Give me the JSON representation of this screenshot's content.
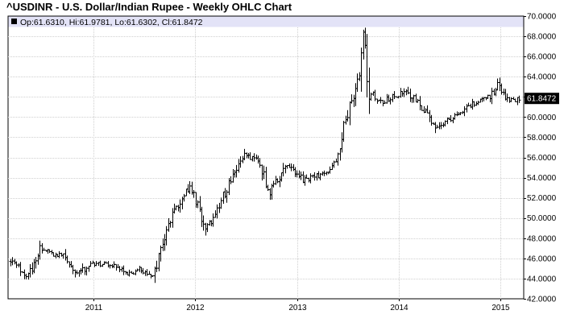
{
  "chart_data": {
    "type": "ohlc",
    "title": "^USDINR - U.S. Dollar/Indian Rupee - Weekly OHLC Chart",
    "info_bar": "Op:61.6310, Hi:61.9781, Lo:61.6302, Cl:61.8472",
    "last_value_label": "61.8472",
    "last_value": 61.8472,
    "ylim": [
      42,
      70
    ],
    "y_ticks": [
      42,
      44,
      46,
      48,
      50,
      52,
      54,
      56,
      58,
      60,
      62,
      64,
      66,
      68,
      70
    ],
    "y_tick_labels": [
      "42.0000",
      "44.0000",
      "46.0000",
      "48.0000",
      "50.0000",
      "52.0000",
      "54.0000",
      "56.0000",
      "58.0000",
      "60.0000",
      "62.0000",
      "64.0000",
      "66.0000",
      "68.0000",
      "70.0000"
    ],
    "x_range": [
      "2010-03-08",
      "2015-03-09"
    ],
    "x_ticks": [
      {
        "label": "2011",
        "date": "2011-01-01"
      },
      {
        "label": "2012",
        "date": "2012-01-01"
      },
      {
        "label": "2013",
        "date": "2013-01-01"
      },
      {
        "label": "2014",
        "date": "2014-01-01"
      },
      {
        "label": "2015",
        "date": "2015-01-01"
      }
    ],
    "grid": true,
    "frequency": "weekly",
    "path_points": [
      {
        "date": "2010-03-08",
        "value": 45.7
      },
      {
        "date": "2010-05-10",
        "value": 44.3
      },
      {
        "date": "2010-06-21",
        "value": 46.8
      },
      {
        "date": "2010-09-13",
        "value": 46.2
      },
      {
        "date": "2010-11-01",
        "value": 44.3
      },
      {
        "date": "2010-12-13",
        "value": 45.4
      },
      {
        "date": "2011-03-14",
        "value": 45.3
      },
      {
        "date": "2011-05-09",
        "value": 44.5
      },
      {
        "date": "2011-06-20",
        "value": 44.9
      },
      {
        "date": "2011-08-01",
        "value": 44.1
      },
      {
        "date": "2011-09-26",
        "value": 49.5
      },
      {
        "date": "2011-12-12",
        "value": 53.2
      },
      {
        "date": "2012-02-06",
        "value": 49.1
      },
      {
        "date": "2012-03-05",
        "value": 49.8
      },
      {
        "date": "2012-05-14",
        "value": 54.4
      },
      {
        "date": "2012-06-25",
        "value": 56.2
      },
      {
        "date": "2012-08-13",
        "value": 55.6
      },
      {
        "date": "2012-09-24",
        "value": 52.5
      },
      {
        "date": "2012-11-19",
        "value": 55.2
      },
      {
        "date": "2013-01-21",
        "value": 53.8
      },
      {
        "date": "2013-04-01",
        "value": 54.3
      },
      {
        "date": "2013-05-20",
        "value": 55.5
      },
      {
        "date": "2013-06-24",
        "value": 59.6
      },
      {
        "date": "2013-08-12",
        "value": 64.0
      },
      {
        "date": "2013-08-26",
        "value": 68.0
      },
      {
        "date": "2013-09-16",
        "value": 62.5
      },
      {
        "date": "2013-10-28",
        "value": 61.5
      },
      {
        "date": "2013-12-09",
        "value": 62.0
      },
      {
        "date": "2014-01-27",
        "value": 62.6
      },
      {
        "date": "2014-04-07",
        "value": 60.5
      },
      {
        "date": "2014-05-19",
        "value": 58.9
      },
      {
        "date": "2014-07-14",
        "value": 60.1
      },
      {
        "date": "2014-09-22",
        "value": 61.2
      },
      {
        "date": "2014-11-24",
        "value": 62.0
      },
      {
        "date": "2014-12-22",
        "value": 63.3
      },
      {
        "date": "2015-01-26",
        "value": 61.6
      },
      {
        "date": "2015-03-09",
        "value": 61.85
      }
    ]
  }
}
